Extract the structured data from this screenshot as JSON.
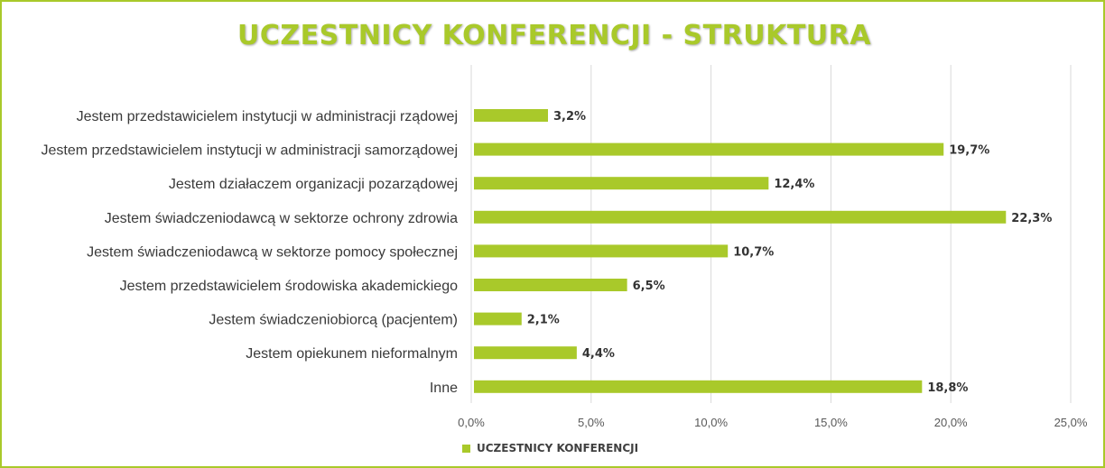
{
  "colors": {
    "bar": "#a9c92a",
    "border": "#a9c92a",
    "title": "#a9c92a",
    "grid": "#d9d9d9"
  },
  "chart_data": {
    "type": "bar",
    "orientation": "horizontal",
    "title": "UCZESTNICY KONFERENCJI - STRUKTURA",
    "categories": [
      "Jestem przedstawicielem instytucji w administracji rządowej",
      "Jestem przedstawicielem instytucji w administracji samorządowej",
      "Jestem działaczem organizacji pozarządowej",
      "Jestem świadczeniodawcą w sektorze ochrony zdrowia",
      "Jestem świadczeniodawcą w sektorze pomocy społecznej",
      "Jestem przedstawicielem środowiska akademickiego",
      "Jestem świadczeniobiorcą (pacjentem)",
      "Jestem opiekunem nieformalnym",
      "Inne"
    ],
    "series": [
      {
        "name": "UCZESTNICY KONFERENCJI",
        "values": [
          3.2,
          19.7,
          12.4,
          22.3,
          10.7,
          6.5,
          2.1,
          4.4,
          18.8
        ],
        "labels": [
          "3,2%",
          "19,7%",
          "12,4%",
          "22,3%",
          "10,7%",
          "6,5%",
          "2,1%",
          "4,4%",
          "18,8%"
        ]
      }
    ],
    "xlim": [
      0,
      25
    ],
    "xticks": [
      0,
      5,
      10,
      15,
      20,
      25
    ],
    "xtick_labels": [
      "0,0%",
      "5,0%",
      "10,0%",
      "15,0%",
      "20,0%",
      "25,0%"
    ],
    "grid": true,
    "legend": "bottom"
  }
}
